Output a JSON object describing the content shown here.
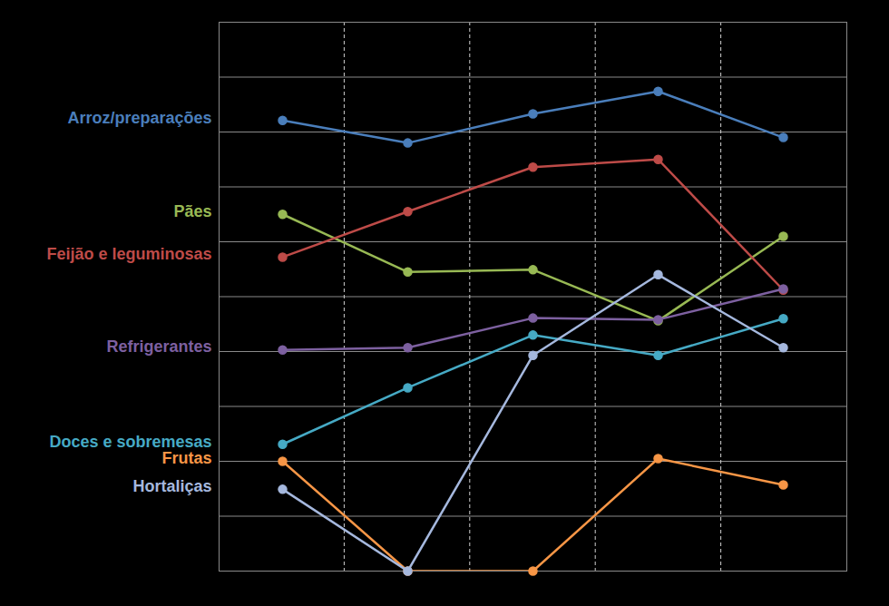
{
  "chart_data": {
    "type": "line",
    "categories": [
      null,
      null,
      null,
      null,
      null
    ],
    "ylim": [
      0,
      10
    ],
    "yticks": [
      0,
      1,
      2,
      3,
      4,
      5,
      6,
      7,
      8,
      9,
      10
    ],
    "grid": true,
    "tick_labels": false,
    "legend": "left",
    "marker": "circle",
    "series": [
      {
        "name": "Arroz/preparações",
        "color": "#4a7ebb",
        "values": [
          8.21,
          7.8,
          8.33,
          8.74,
          7.9
        ]
      },
      {
        "name": "Pães",
        "color": "#98b954",
        "values": [
          6.5,
          5.45,
          5.49,
          4.56,
          6.1
        ]
      },
      {
        "name": "Feijão e leguminosas",
        "color": "#be4b48",
        "values": [
          5.72,
          6.55,
          7.36,
          7.5,
          5.12
        ]
      },
      {
        "name": "Refrigerantes",
        "color": "#7d60a0",
        "values": [
          4.03,
          4.07,
          4.61,
          4.58,
          5.14
        ]
      },
      {
        "name": "Doces e sobremesas",
        "color": "#46aac5",
        "values": [
          2.31,
          3.34,
          4.3,
          3.93,
          4.6
        ]
      },
      {
        "name": "Frutas",
        "color": "#f79646",
        "values": [
          2.0,
          0,
          0,
          2.05,
          1.57
        ]
      },
      {
        "name": "Hortaliças",
        "color": "#a5b8de",
        "values": [
          1.49,
          0,
          3.93,
          5.4,
          4.07
        ]
      }
    ]
  }
}
